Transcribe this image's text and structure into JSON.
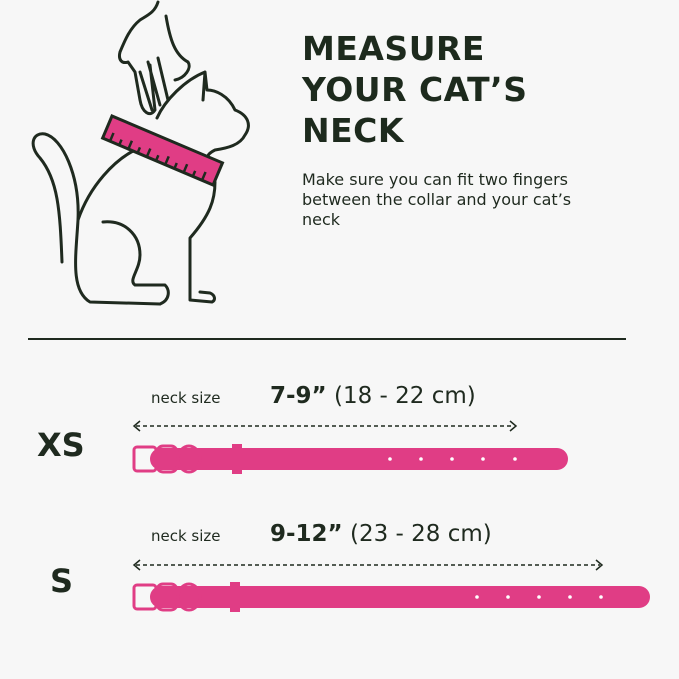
{
  "heading": {
    "lines": [
      "MEASURE",
      "YOUR CAT’S",
      "NECK"
    ]
  },
  "instruction": "Make sure you can fit two fingers between the collar and your cat’s neck",
  "colors": {
    "accent": "#e03d85",
    "text": "#1f2a1f",
    "background": "#f7f7f7"
  },
  "illustration": {
    "icon": "cat-with-hand-and-measuring-tape-icon"
  },
  "sizes": [
    {
      "label": "XS",
      "neck_label": "neck size",
      "range_bold": "7-9”",
      "range_metric": "(18 - 22 cm)"
    },
    {
      "label": "S",
      "neck_label": "neck size",
      "range_bold": "9-12”",
      "range_metric": "(23 - 28 cm)"
    }
  ]
}
